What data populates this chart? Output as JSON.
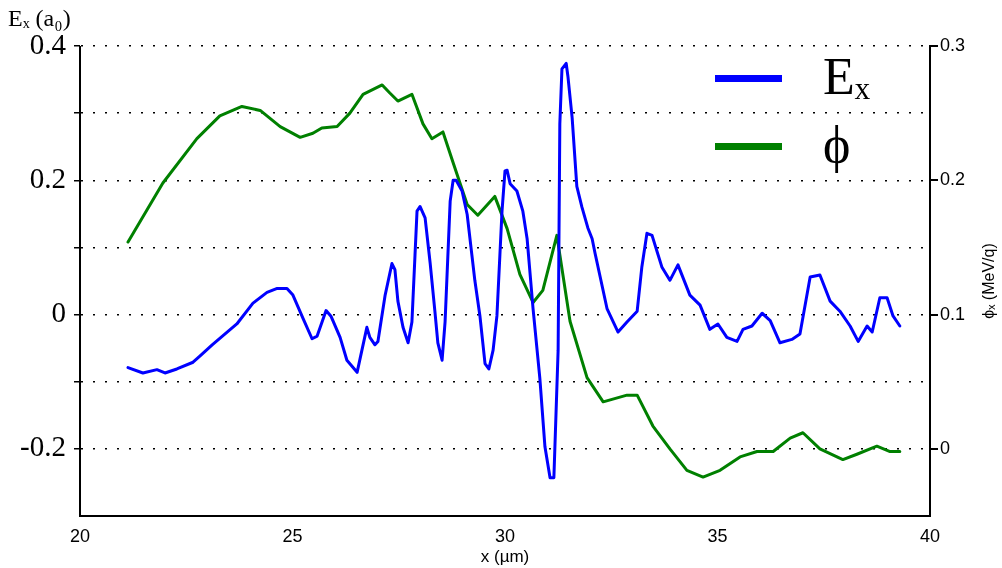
{
  "chart_data": {
    "type": "line",
    "xlabel": "x (µm)",
    "ylabel": "Eₓ (a₀)",
    "y2label": "ϕₓ (MeV/q)",
    "xlim": [
      20,
      40
    ],
    "xticks": [
      20,
      25,
      30,
      35,
      40
    ],
    "ylim": [
      -0.3,
      0.4
    ],
    "yticks": [
      -0.2,
      {
        "value": -0.1,
        "label": null
      },
      0,
      {
        "value": 0.1,
        "label": null
      },
      0.2,
      {
        "value": 0.3,
        "label": null
      },
      0.4
    ],
    "y2lim": [
      -0.05,
      0.3
    ],
    "y2ticks": [
      0,
      0.1,
      0.2,
      0.3
    ],
    "grid": "y",
    "legend": "top right",
    "marker": "none",
    "line_style": "solid",
    "series": [
      {
        "name": "Eₓ",
        "color": "#0000ff",
        "x": [
          21.13,
          21.48,
          21.81,
          22.0,
          22.28,
          22.66,
          22.82,
          23.11,
          23.69,
          24.07,
          24.4,
          24.64,
          24.87,
          25.01,
          25.25,
          25.46,
          25.58,
          25.79,
          25.91,
          26.12,
          26.28,
          26.52,
          26.75,
          26.82,
          26.94,
          27.01,
          27.18,
          27.34,
          27.41,
          27.48,
          27.6,
          27.72,
          27.81,
          27.93,
          28.0,
          28.12,
          28.24,
          28.35,
          28.42,
          28.52,
          28.59,
          28.71,
          28.78,
          28.85,
          28.99,
          29.11,
          29.29,
          29.41,
          29.53,
          29.62,
          29.72,
          29.81,
          29.93,
          30.0,
          30.05,
          30.12,
          30.28,
          30.42,
          30.52,
          30.66,
          30.82,
          30.94,
          31.06,
          31.15,
          31.25,
          31.29,
          31.34,
          31.44,
          31.48,
          31.58,
          31.69,
          31.81,
          31.95,
          32.05,
          32.12,
          32.24,
          32.4,
          32.66,
          32.87,
          33.11,
          33.22,
          33.34,
          33.46,
          33.69,
          33.88,
          34.07,
          34.35,
          34.59,
          34.82,
          35.01,
          35.22,
          35.46,
          35.6,
          35.81,
          36.05,
          36.24,
          36.47,
          36.75,
          36.94,
          37.18,
          37.41,
          37.65,
          37.88,
          38.12,
          38.31,
          38.52,
          38.64,
          38.82,
          38.99,
          39.13,
          39.29
        ],
        "values": [
          -0.079,
          -0.087,
          -0.082,
          -0.087,
          -0.081,
          -0.071,
          -0.062,
          -0.045,
          -0.014,
          0.017,
          0.033,
          0.039,
          0.039,
          0.029,
          -0.006,
          -0.036,
          -0.032,
          0.006,
          -0.003,
          -0.034,
          -0.068,
          -0.086,
          -0.019,
          -0.034,
          -0.045,
          -0.04,
          0.029,
          0.076,
          0.067,
          0.02,
          -0.019,
          -0.042,
          -0.011,
          0.154,
          0.161,
          0.144,
          0.076,
          0.005,
          -0.042,
          -0.068,
          -0.011,
          0.169,
          0.2,
          0.2,
          0.184,
          0.149,
          0.051,
          -0.002,
          -0.073,
          -0.081,
          -0.053,
          -0.002,
          0.154,
          0.214,
          0.215,
          0.195,
          0.184,
          0.154,
          0.113,
          0.009,
          -0.095,
          -0.197,
          -0.243,
          -0.243,
          -0.053,
          0.284,
          0.366,
          0.374,
          0.355,
          0.293,
          0.191,
          0.16,
          0.129,
          0.113,
          0.091,
          0.056,
          0.009,
          -0.026,
          -0.011,
          0.005,
          0.071,
          0.121,
          0.118,
          0.071,
          0.051,
          0.074,
          0.029,
          0.014,
          -0.022,
          -0.014,
          -0.034,
          -0.04,
          -0.022,
          -0.017,
          0.002,
          -0.009,
          -0.042,
          -0.037,
          -0.029,
          0.056,
          0.059,
          0.02,
          0.005,
          -0.017,
          -0.04,
          -0.017,
          -0.026,
          0.025,
          0.025,
          -0.002,
          -0.017
        ]
      },
      {
        "name": "ϕ",
        "color": "#008000",
        "axis": "y2",
        "x": [
          21.13,
          21.95,
          22.75,
          23.29,
          23.81,
          24.24,
          24.71,
          25.18,
          25.48,
          25.69,
          26.05,
          26.35,
          26.66,
          27.11,
          27.29,
          27.48,
          27.81,
          28.07,
          28.28,
          28.54,
          28.78,
          29.11,
          29.36,
          29.76,
          30.05,
          30.35,
          30.66,
          30.89,
          31.22,
          31.53,
          31.93,
          32.31,
          32.87,
          33.11,
          33.48,
          33.88,
          34.28,
          34.66,
          35.06,
          35.53,
          35.93,
          36.31,
          36.71,
          37.01,
          37.41,
          37.95,
          38.28,
          38.75,
          39.06,
          39.29
        ],
        "values": [
          0.154,
          0.198,
          0.231,
          0.248,
          0.255,
          0.252,
          0.24,
          0.232,
          0.235,
          0.239,
          0.24,
          0.25,
          0.264,
          0.271,
          0.265,
          0.259,
          0.264,
          0.242,
          0.231,
          0.236,
          0.213,
          0.182,
          0.174,
          0.188,
          0.164,
          0.13,
          0.109,
          0.118,
          0.159,
          0.095,
          0.053,
          0.035,
          0.04,
          0.04,
          0.017,
          0.0,
          -0.016,
          -0.021,
          -0.016,
          -0.006,
          -0.002,
          -0.002,
          0.008,
          0.012,
          0.0,
          -0.008,
          -0.004,
          0.002,
          -0.002,
          -0.002
        ]
      }
    ]
  }
}
